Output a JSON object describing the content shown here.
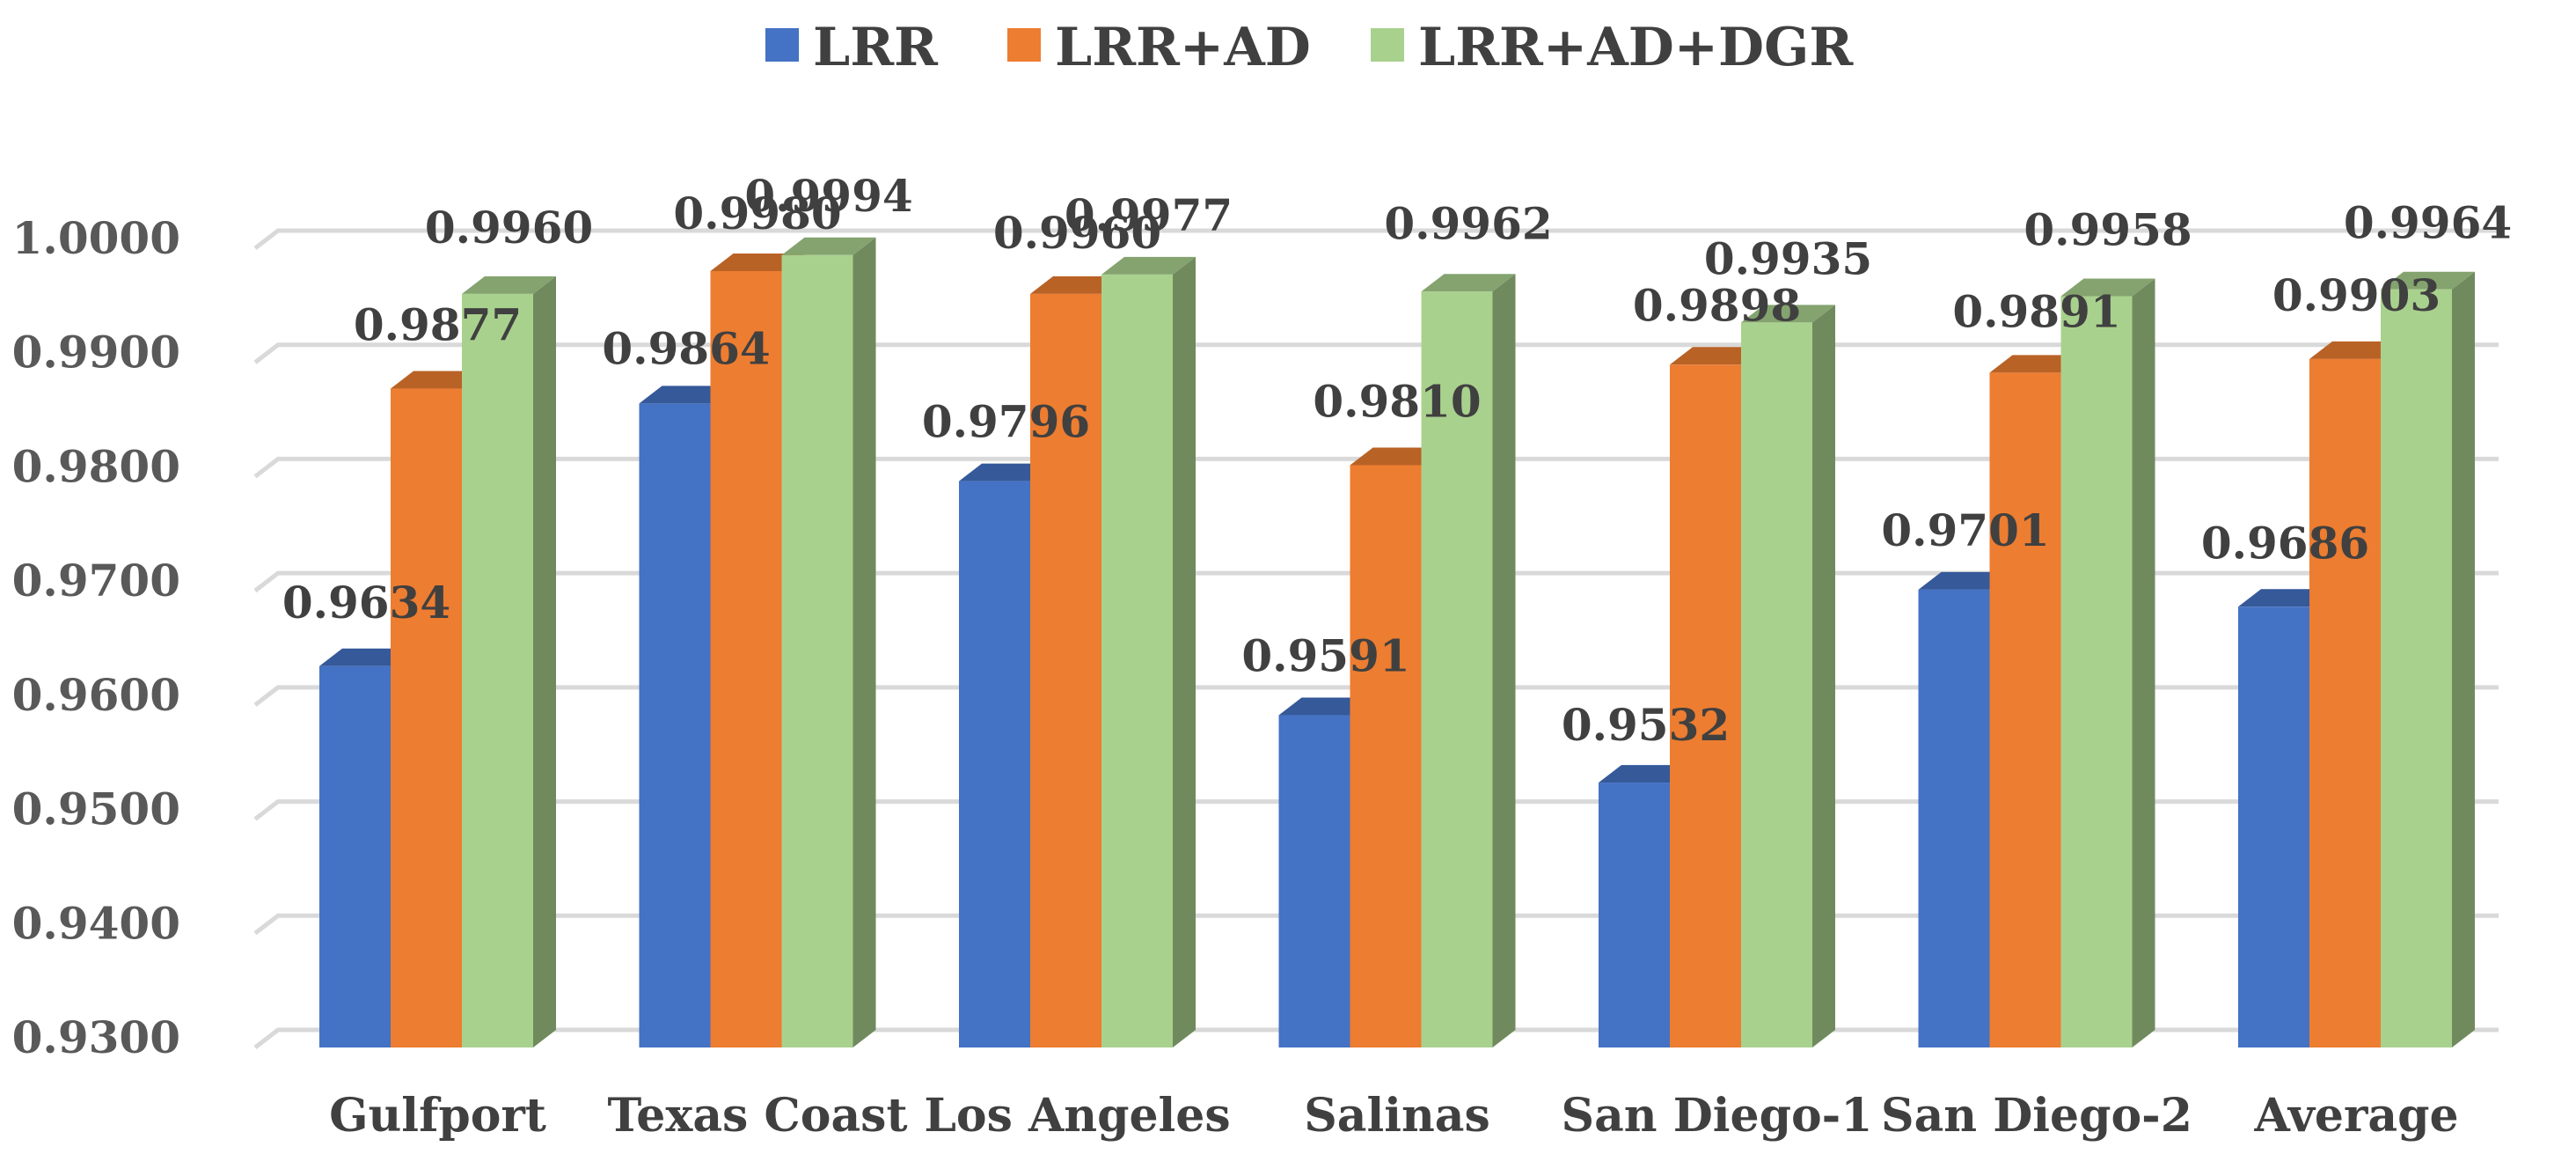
{
  "chart_data": {
    "type": "bar",
    "title": "",
    "xlabel": "",
    "ylabel": "",
    "ylim": [
      0.93,
      1.0
    ],
    "yticks": [
      "0.9300",
      "0.9400",
      "0.9500",
      "0.9600",
      "0.9700",
      "0.9800",
      "0.9900",
      "1.0000"
    ],
    "ytick_values": [
      0.93,
      0.94,
      0.95,
      0.96,
      0.97,
      0.98,
      0.99,
      1.0
    ],
    "grid": true,
    "legend_position": "top-center",
    "categories": [
      "Gulfport",
      "Texas Coast",
      "Los Angeles",
      "Salinas",
      "San Diego-1",
      "San Diego-2",
      "Average"
    ],
    "series": [
      {
        "name": "LRR",
        "color": "#4472C4",
        "values": [
          0.9634,
          0.9864,
          0.9796,
          0.9591,
          0.9532,
          0.9701,
          0.9686
        ],
        "labels": [
          "0.9634",
          "0.9864",
          "0.9796",
          "0.9591",
          "0.9532",
          "0.9701",
          "0.9686"
        ]
      },
      {
        "name": "LRR+AD",
        "color": "#ED7D31",
        "values": [
          0.9877,
          0.998,
          0.996,
          0.981,
          0.9898,
          0.9891,
          0.9903
        ],
        "labels": [
          "0.9877",
          "0.9980",
          "0.9960",
          "0.9810",
          "0.9898",
          "0.9891",
          "0.9903"
        ]
      },
      {
        "name": "LRR+AD+DGR",
        "color": "#A9D18E",
        "values": [
          0.996,
          0.9994,
          0.9977,
          0.9962,
          0.9935,
          0.9958,
          0.9964
        ],
        "labels": [
          "0.9960",
          "0.9994",
          "0.9977",
          "0.9962",
          "0.9935",
          "0.9958",
          "0.9964"
        ]
      }
    ]
  }
}
